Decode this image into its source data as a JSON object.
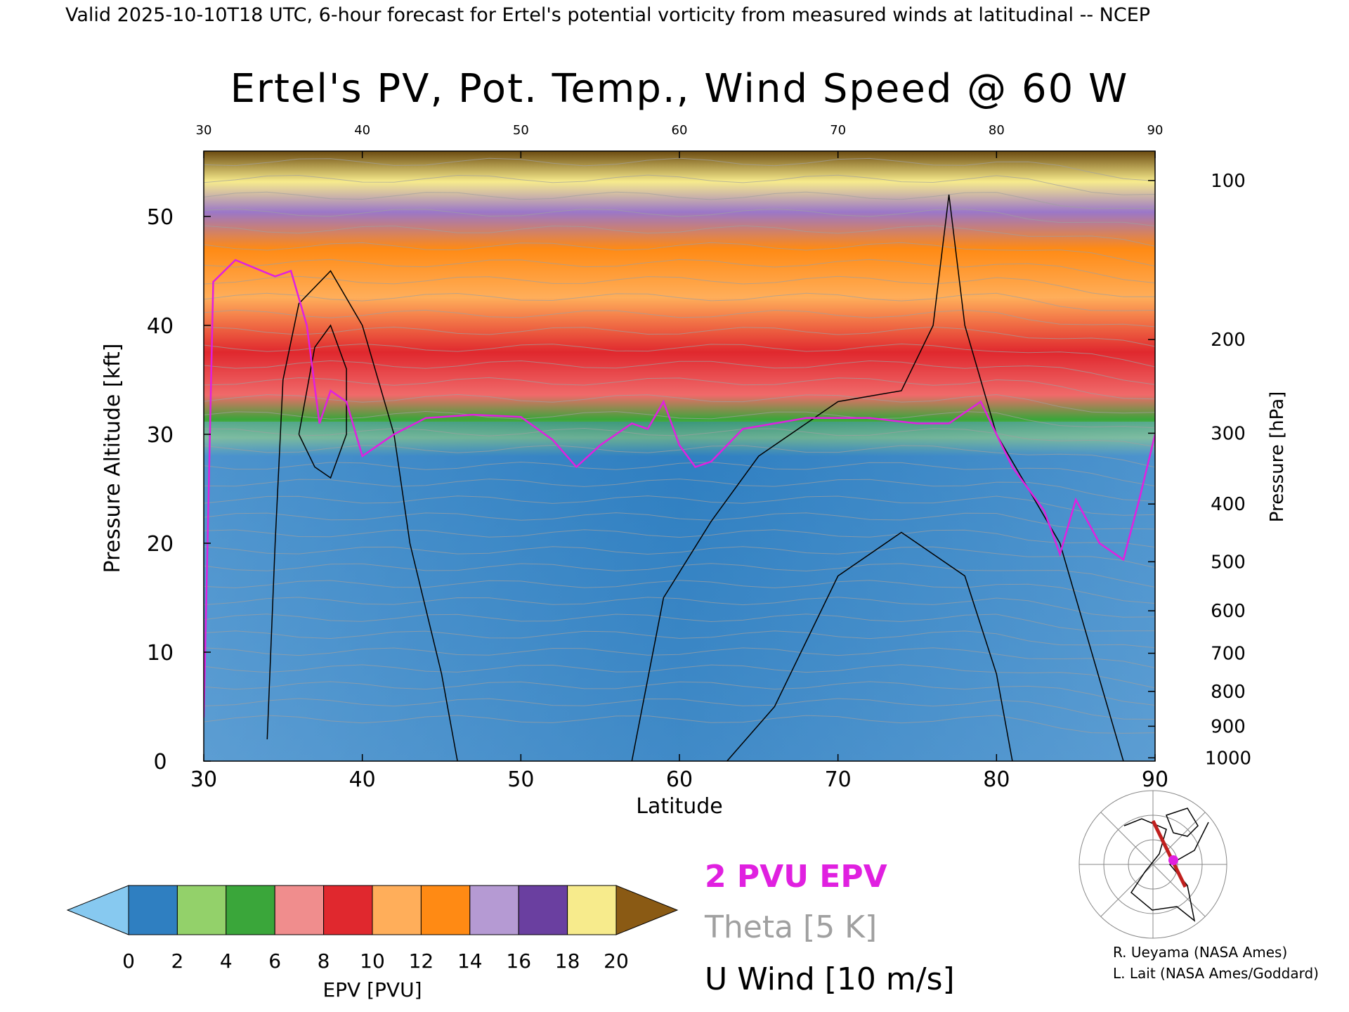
{
  "header": {
    "valid_line": "Valid 2025-10-10T18 UTC, 6-hour forecast for Ertel's potential vorticity from measured winds at latitudinal -- NCEP"
  },
  "chart_data": {
    "type": "heatmap",
    "title": "Ertel's PV, Pot. Temp., Wind Speed @ 60 W",
    "xlabel": "Latitude",
    "ylabel": "Pressure Altitude [kft]",
    "y2label": "Pressure [hPa]",
    "xlim": [
      30,
      90
    ],
    "ylim": [
      0,
      56
    ],
    "x_ticks": [
      "30",
      "40",
      "50",
      "60",
      "70",
      "80",
      "90"
    ],
    "y_ticks": [
      "0",
      "10",
      "20",
      "30",
      "40",
      "50"
    ],
    "pressure_ticks": [
      {
        "label": "100",
        "kft": 53.3
      },
      {
        "label": "200",
        "kft": 38.7
      },
      {
        "label": "300",
        "kft": 30.1
      },
      {
        "label": "400",
        "kft": 23.6
      },
      {
        "label": "500",
        "kft": 18.3
      },
      {
        "label": "600",
        "kft": 13.8
      },
      {
        "label": "700",
        "kft": 9.9
      },
      {
        "label": "800",
        "kft": 6.4
      },
      {
        "label": "900",
        "kft": 3.2
      },
      {
        "label": "1000",
        "kft": 0.3
      }
    ],
    "colorbar": {
      "label": "EPV [PVU]",
      "tick_labels": [
        "0",
        "2",
        "4",
        "6",
        "8",
        "10",
        "12",
        "14",
        "16",
        "18",
        "20"
      ],
      "colors": [
        "#2f7fc1",
        "#93d16a",
        "#3aa63a",
        "#f08d8d",
        "#e0282e",
        "#ffae5a",
        "#ff8a14",
        "#b59ad3",
        "#6a3fa0",
        "#f7eb8c"
      ],
      "under_color": "#87c9f0",
      "over_color": "#8a5a14"
    },
    "tropopause_2pvu_kft": [
      {
        "lat": 30,
        "kft": 4
      },
      {
        "lat": 30.6,
        "kft": 44
      },
      {
        "lat": 32,
        "kft": 46
      },
      {
        "lat": 34.5,
        "kft": 44.5
      },
      {
        "lat": 35.5,
        "kft": 45
      },
      {
        "lat": 36.5,
        "kft": 40
      },
      {
        "lat": 37.3,
        "kft": 31
      },
      {
        "lat": 38,
        "kft": 34
      },
      {
        "lat": 39,
        "kft": 33
      },
      {
        "lat": 40,
        "kft": 28
      },
      {
        "lat": 42,
        "kft": 30
      },
      {
        "lat": 44,
        "kft": 31.5
      },
      {
        "lat": 47,
        "kft": 31.8
      },
      {
        "lat": 50,
        "kft": 31.6
      },
      {
        "lat": 52,
        "kft": 29.5
      },
      {
        "lat": 53.5,
        "kft": 27
      },
      {
        "lat": 55,
        "kft": 29
      },
      {
        "lat": 57,
        "kft": 31
      },
      {
        "lat": 58,
        "kft": 30.5
      },
      {
        "lat": 59,
        "kft": 33
      },
      {
        "lat": 60,
        "kft": 29
      },
      {
        "lat": 61,
        "kft": 27
      },
      {
        "lat": 62,
        "kft": 27.5
      },
      {
        "lat": 64,
        "kft": 30.5
      },
      {
        "lat": 68,
        "kft": 31.5
      },
      {
        "lat": 72,
        "kft": 31.5
      },
      {
        "lat": 75,
        "kft": 31
      },
      {
        "lat": 77,
        "kft": 31
      },
      {
        "lat": 79,
        "kft": 33
      },
      {
        "lat": 80,
        "kft": 30
      },
      {
        "lat": 81,
        "kft": 27
      },
      {
        "lat": 82,
        "kft": 25
      },
      {
        "lat": 83,
        "kft": 23
      },
      {
        "lat": 84,
        "kft": 19
      },
      {
        "lat": 85,
        "kft": 24
      },
      {
        "lat": 86.5,
        "kft": 20
      },
      {
        "lat": 88,
        "kft": 18.5
      },
      {
        "lat": 89,
        "kft": 24
      },
      {
        "lat": 90,
        "kft": 30
      }
    ],
    "legend": {
      "epv_2pvu": "2 PVU EPV",
      "theta": "Theta [5 K]",
      "u_wind": "U Wind [10 m/s]"
    },
    "colors": {
      "pvu2_line": "#e020e0",
      "theta_line": "#a0a0a0",
      "wind_line": "#000000"
    }
  },
  "credits": [
    "R. Ueyama (NASA Ames)",
    "L. Lait (NASA Ames/Goddard)"
  ]
}
